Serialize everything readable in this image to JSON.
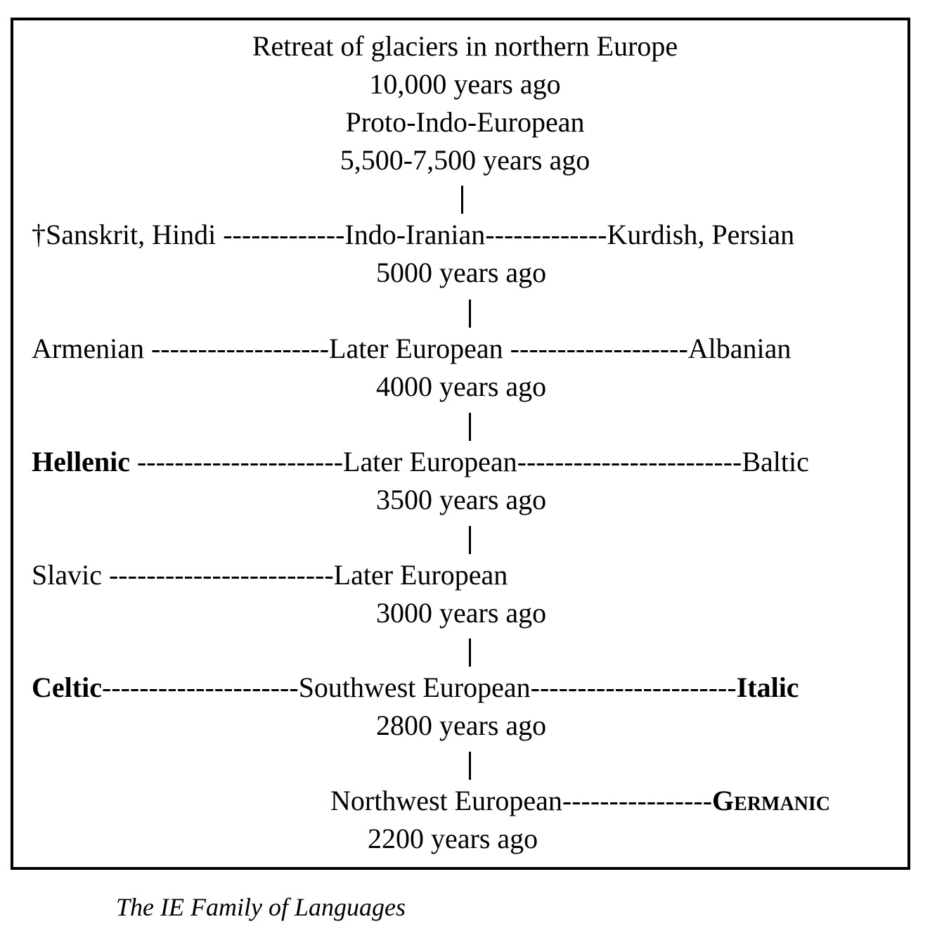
{
  "header": {
    "line1": "Retreat of glaciers in northern Europe",
    "line2": "10,000 years ago",
    "line3": "Proto-Indo-European",
    "line4": "5,500-7,500 years ago"
  },
  "rows": [
    {
      "left": "†Sanskrit, Hindi -------------",
      "center": "Indo-Iranian",
      "right": "-------------Kurdish, Persian",
      "date": "5000 years ago"
    },
    {
      "left": "Armenian -------------------",
      "center": "Later European",
      "right": " -------------------Albanian",
      "date": "4000 years ago"
    },
    {
      "left_bold": "Hellenic",
      "left": " ----------------------",
      "center": "Later European",
      "right": "------------------------Baltic",
      "date": "3500 years ago"
    },
    {
      "left": "Slavic ------------------------",
      "center": "Later European",
      "date": "3000 years ago"
    },
    {
      "left_bold": "Celtic",
      "left": "---------------------",
      "center": "Southwest European",
      "right": "----------------------",
      "right_bold": "Italic",
      "date": "2800 years ago"
    },
    {
      "center": "Northwest European",
      "right": "----------------",
      "right_bold": "Germanic",
      "date": "2200 years ago"
    }
  ],
  "caption": "The IE Family of Languages"
}
